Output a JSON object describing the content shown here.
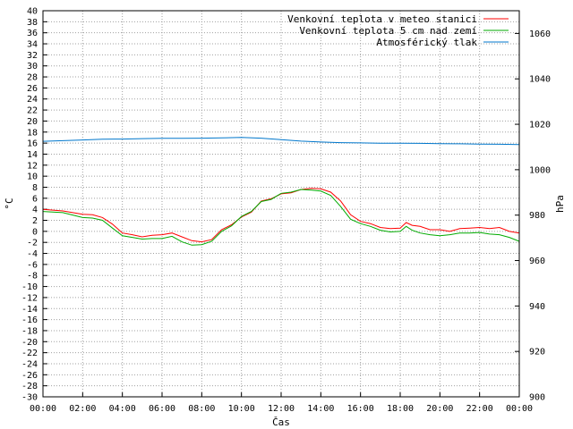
{
  "chart_data": {
    "type": "line",
    "xlabel": "Čas",
    "ylabel_left": "°C",
    "ylabel_right": "hPa",
    "x_ticks": [
      "00:00",
      "02:00",
      "04:00",
      "06:00",
      "08:00",
      "10:00",
      "12:00",
      "14:00",
      "16:00",
      "18:00",
      "20:00",
      "22:00",
      "00:00"
    ],
    "x_range_hours": [
      0,
      24
    ],
    "y_left_range": [
      -30,
      40
    ],
    "y_left_step": 2,
    "y_right_range": [
      900,
      1070
    ],
    "y_right_ticks": [
      900,
      920,
      940,
      960,
      980,
      1000,
      1020,
      1040,
      1060
    ],
    "grid": true,
    "legend_position": "top-right",
    "series": [
      {
        "name": "Venkovní teplota v meteo stanici",
        "axis": "left",
        "color": "#ff0000",
        "points": [
          [
            0,
            4
          ],
          [
            1,
            3.7
          ],
          [
            2,
            3.1
          ],
          [
            2.5,
            3
          ],
          [
            3,
            2.5
          ],
          [
            3.5,
            1.3
          ],
          [
            4,
            -0.3
          ],
          [
            4.5,
            -0.6
          ],
          [
            5,
            -1
          ],
          [
            5.5,
            -0.7
          ],
          [
            6,
            -0.6
          ],
          [
            6.5,
            -0.3
          ],
          [
            7,
            -1
          ],
          [
            7.5,
            -1.7
          ],
          [
            8,
            -1.9
          ],
          [
            8.5,
            -1.5
          ],
          [
            9,
            0.3
          ],
          [
            9.5,
            1.2
          ],
          [
            10,
            2.6
          ],
          [
            10.5,
            3.5
          ],
          [
            11,
            5.5
          ],
          [
            11.5,
            5.9
          ],
          [
            12,
            6.8
          ],
          [
            12.5,
            7
          ],
          [
            13,
            7.6
          ],
          [
            13.5,
            7.8
          ],
          [
            14,
            7.7
          ],
          [
            14.5,
            7.1
          ],
          [
            15,
            5.5
          ],
          [
            15.5,
            3
          ],
          [
            16,
            1.8
          ],
          [
            16.5,
            1.4
          ],
          [
            17,
            0.7
          ],
          [
            17.5,
            0.5
          ],
          [
            18,
            0.6
          ],
          [
            18.3,
            1.6
          ],
          [
            18.6,
            1.1
          ],
          [
            19,
            0.9
          ],
          [
            19.5,
            0.3
          ],
          [
            20,
            0.3
          ],
          [
            20.5,
            0
          ],
          [
            21,
            0.5
          ],
          [
            21.5,
            0.6
          ],
          [
            22,
            0.7
          ],
          [
            22.5,
            0.5
          ],
          [
            23,
            0.7
          ],
          [
            23.5,
            0
          ],
          [
            24,
            -0.3
          ]
        ]
      },
      {
        "name": "Venkovní teplota 5 cm nad zemí",
        "axis": "left",
        "color": "#00aa00",
        "points": [
          [
            0,
            3.6
          ],
          [
            1,
            3.4
          ],
          [
            2,
            2.5
          ],
          [
            2.5,
            2.4
          ],
          [
            3,
            2
          ],
          [
            3.5,
            0.6
          ],
          [
            4,
            -0.8
          ],
          [
            4.5,
            -1.1
          ],
          [
            5,
            -1.4
          ],
          [
            5.5,
            -1.3
          ],
          [
            6,
            -1.3
          ],
          [
            6.5,
            -0.9
          ],
          [
            7,
            -1.9
          ],
          [
            7.5,
            -2.5
          ],
          [
            8,
            -2.4
          ],
          [
            8.5,
            -1.8
          ],
          [
            9,
            0
          ],
          [
            9.5,
            1
          ],
          [
            10,
            2.7
          ],
          [
            10.5,
            3.6
          ],
          [
            11,
            5.4
          ],
          [
            11.5,
            5.8
          ],
          [
            12,
            6.9
          ],
          [
            12.5,
            7.1
          ],
          [
            13,
            7.6
          ],
          [
            13.5,
            7.5
          ],
          [
            14,
            7.3
          ],
          [
            14.5,
            6.5
          ],
          [
            15,
            4.5
          ],
          [
            15.5,
            2.2
          ],
          [
            16,
            1.4
          ],
          [
            16.5,
            0.9
          ],
          [
            17,
            0.2
          ],
          [
            17.5,
            -0.1
          ],
          [
            18,
            0
          ],
          [
            18.3,
            0.9
          ],
          [
            18.6,
            0.2
          ],
          [
            19,
            -0.3
          ],
          [
            19.5,
            -0.6
          ],
          [
            20,
            -0.8
          ],
          [
            20.5,
            -0.6
          ],
          [
            21,
            -0.3
          ],
          [
            21.5,
            -0.3
          ],
          [
            22,
            -0.2
          ],
          [
            22.5,
            -0.5
          ],
          [
            23,
            -0.6
          ],
          [
            23.5,
            -1.1
          ],
          [
            24,
            -1.8
          ]
        ]
      },
      {
        "name": "Atmosférický tlak",
        "axis": "right",
        "color": "#0077cc",
        "points": [
          [
            0,
            1012.5
          ],
          [
            1,
            1012.8
          ],
          [
            2,
            1013.1
          ],
          [
            3,
            1013.4
          ],
          [
            4,
            1013.5
          ],
          [
            5,
            1013.7
          ],
          [
            6,
            1013.8
          ],
          [
            7,
            1013.8
          ],
          [
            8,
            1013.9
          ],
          [
            9,
            1014
          ],
          [
            10,
            1014.2
          ],
          [
            11,
            1013.9
          ],
          [
            12,
            1013.2
          ],
          [
            13,
            1012.6
          ],
          [
            14,
            1012.2
          ],
          [
            15,
            1011.9
          ],
          [
            16,
            1011.8
          ],
          [
            17,
            1011.7
          ],
          [
            18,
            1011.7
          ],
          [
            19,
            1011.6
          ],
          [
            20,
            1011.5
          ],
          [
            21,
            1011.4
          ],
          [
            22,
            1011.3
          ],
          [
            23,
            1011.2
          ],
          [
            24,
            1011.1
          ]
        ]
      }
    ]
  }
}
